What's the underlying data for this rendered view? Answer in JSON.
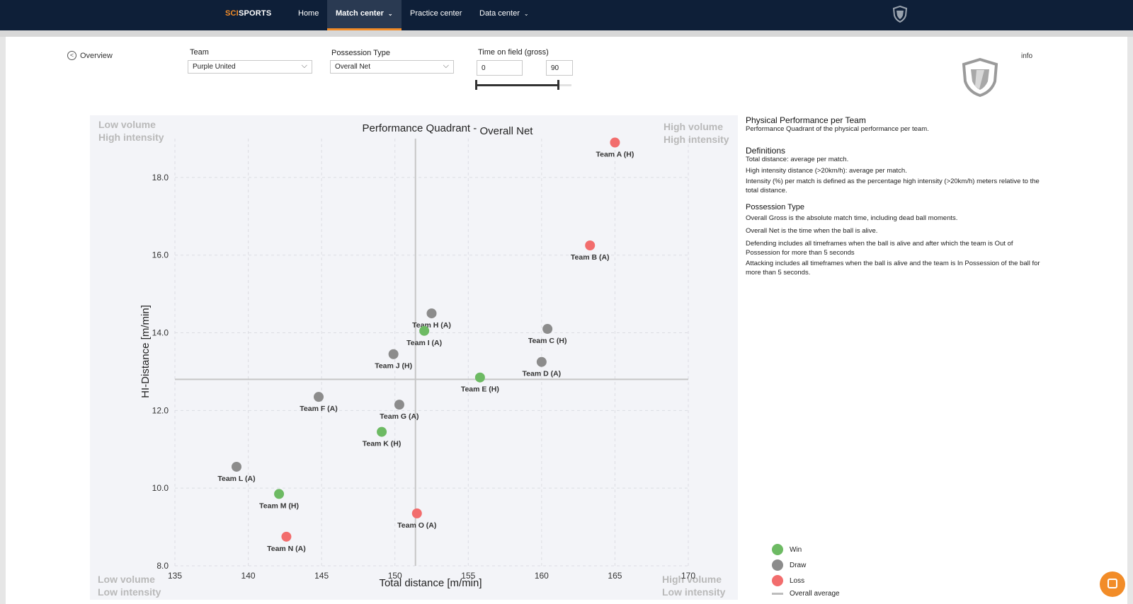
{
  "nav": {
    "logo_a": "SCI",
    "logo_b": "SPORTS",
    "items": [
      {
        "label": "Home"
      },
      {
        "label": "Match center",
        "chevron": "chevron-down-icon"
      },
      {
        "label": "Practice center"
      },
      {
        "label": "Data center",
        "chevron": "chevron-down-icon"
      }
    ]
  },
  "filters": {
    "overview_label": "Overview",
    "team_label": "Team",
    "team_value": "Purple United",
    "possession_label": "Possession Type",
    "possession_value": "Overall Net",
    "time_label": "Time on field (gross)",
    "time_min": "0",
    "time_max": "90",
    "slider_range": [
      0,
      90
    ],
    "info_label": "info"
  },
  "side": {
    "title": "Physical Performance per Team",
    "subtitle": "Performance Quadrant of the physical performance per team.",
    "definitions_title": "Definitions",
    "definitions": [
      "Total distance: average per match.",
      "High intensity distance (>20km/h): average per match.",
      "Intensity (%) per match is defined as the percentage high intensity (>20km/h) meters relative to the total distance."
    ],
    "possession_title": "Possession Type",
    "possession": [
      "Overall Gross is the absolute match time, including dead ball moments.",
      "Overall Net is the time when the ball is alive.",
      "Defending includes all timeframes when the ball is alive and after which the team is Out of Possession for more than 5 seconds",
      "Attacking includes all timeframes when the ball is alive and the team is In Possession of the ball for more than 5 seconds."
    ]
  },
  "legend": [
    {
      "label": "Win",
      "color": "#6dba63"
    },
    {
      "label": "Draw",
      "color": "#8c8c8c"
    },
    {
      "label": "Loss",
      "color": "#f26d6d"
    },
    {
      "label": "Overall average",
      "color": "#bdbdbd"
    }
  ],
  "quadrants": {
    "top_left": [
      "Low volume",
      "High intensity"
    ],
    "top_right": [
      "High volume",
      "High intensity"
    ],
    "bottom_left": [
      "Low volume",
      "Low intensity"
    ],
    "bottom_right": [
      "High volume",
      "Low intensity"
    ]
  },
  "chart_data": {
    "type": "scatter",
    "title": "Performance Quadrant - ",
    "title_suffix": "Overall Net",
    "xlabel": "Total distance [m/min]",
    "ylabel": "HI-Distance [m/min]",
    "xlim": [
      135,
      170
    ],
    "ylim": [
      8,
      19
    ],
    "xticks": [
      135,
      140,
      145,
      150,
      155,
      160,
      165,
      170
    ],
    "yticks": [
      8.0,
      10.0,
      12.0,
      14.0,
      16.0,
      18.0
    ],
    "grid": true,
    "average": {
      "x": 151.4,
      "y": 12.8
    },
    "colors": {
      "Win": "#6dba63",
      "Draw": "#8c8c8c",
      "Loss": "#f26d6d"
    },
    "points": [
      {
        "label": "Team A (H)",
        "x": 165.0,
        "y": 18.9,
        "result": "Loss"
      },
      {
        "label": "Team B (A)",
        "x": 163.3,
        "y": 16.25,
        "result": "Loss"
      },
      {
        "label": "Team C (H)",
        "x": 160.4,
        "y": 14.1,
        "result": "Draw"
      },
      {
        "label": "Team D (A)",
        "x": 160.0,
        "y": 13.25,
        "result": "Draw"
      },
      {
        "label": "Team E (H)",
        "x": 155.8,
        "y": 12.85,
        "result": "Win"
      },
      {
        "label": "Team F (A)",
        "x": 144.8,
        "y": 12.35,
        "result": "Draw"
      },
      {
        "label": "Team G (A)",
        "x": 150.3,
        "y": 12.15,
        "result": "Draw"
      },
      {
        "label": "Team H (A)",
        "x": 152.5,
        "y": 14.5,
        "result": "Draw"
      },
      {
        "label": "Team I (A)",
        "x": 152.0,
        "y": 14.05,
        "result": "Win"
      },
      {
        "label": "Team J (H)",
        "x": 149.9,
        "y": 13.45,
        "result": "Draw"
      },
      {
        "label": "Team K (H)",
        "x": 149.1,
        "y": 11.45,
        "result": "Win"
      },
      {
        "label": "Team L (A)",
        "x": 139.2,
        "y": 10.55,
        "result": "Draw"
      },
      {
        "label": "Team M (H)",
        "x": 142.1,
        "y": 9.85,
        "result": "Win"
      },
      {
        "label": "Team N (A)",
        "x": 142.6,
        "y": 8.75,
        "result": "Loss"
      },
      {
        "label": "Team O (A)",
        "x": 151.5,
        "y": 9.35,
        "result": "Loss"
      }
    ]
  }
}
